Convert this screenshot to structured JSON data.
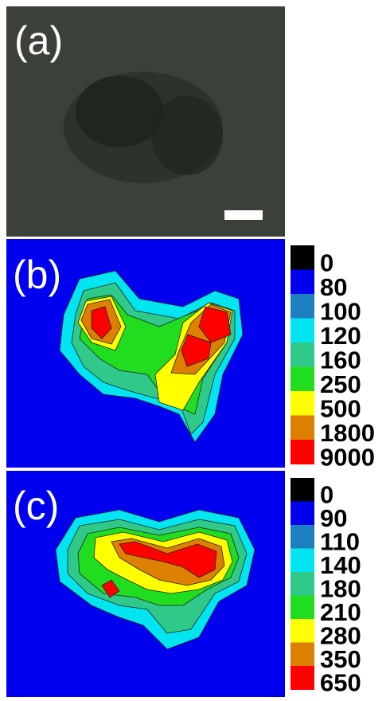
{
  "panels": [
    {
      "label": "(a)"
    },
    {
      "label": "(b)",
      "colorbar": {
        "levels": [
          "0",
          "80",
          "100",
          "120",
          "160",
          "250",
          "500",
          "1800",
          "9000"
        ],
        "colors": [
          "#000000",
          "#0000ee",
          "#1e7fc0",
          "#00e5f0",
          "#2fc98a",
          "#20dd20",
          "#ffff00",
          "#dd8000",
          "#ff0000"
        ]
      }
    },
    {
      "label": "(c)",
      "colorbar": {
        "levels": [
          "0",
          "90",
          "110",
          "140",
          "180",
          "210",
          "280",
          "350",
          "650"
        ],
        "colors": [
          "#000000",
          "#0000ee",
          "#1e7fc0",
          "#00e5f0",
          "#2fc98a",
          "#20dd20",
          "#ffff00",
          "#dd8000",
          "#ff0000"
        ]
      }
    }
  ]
}
